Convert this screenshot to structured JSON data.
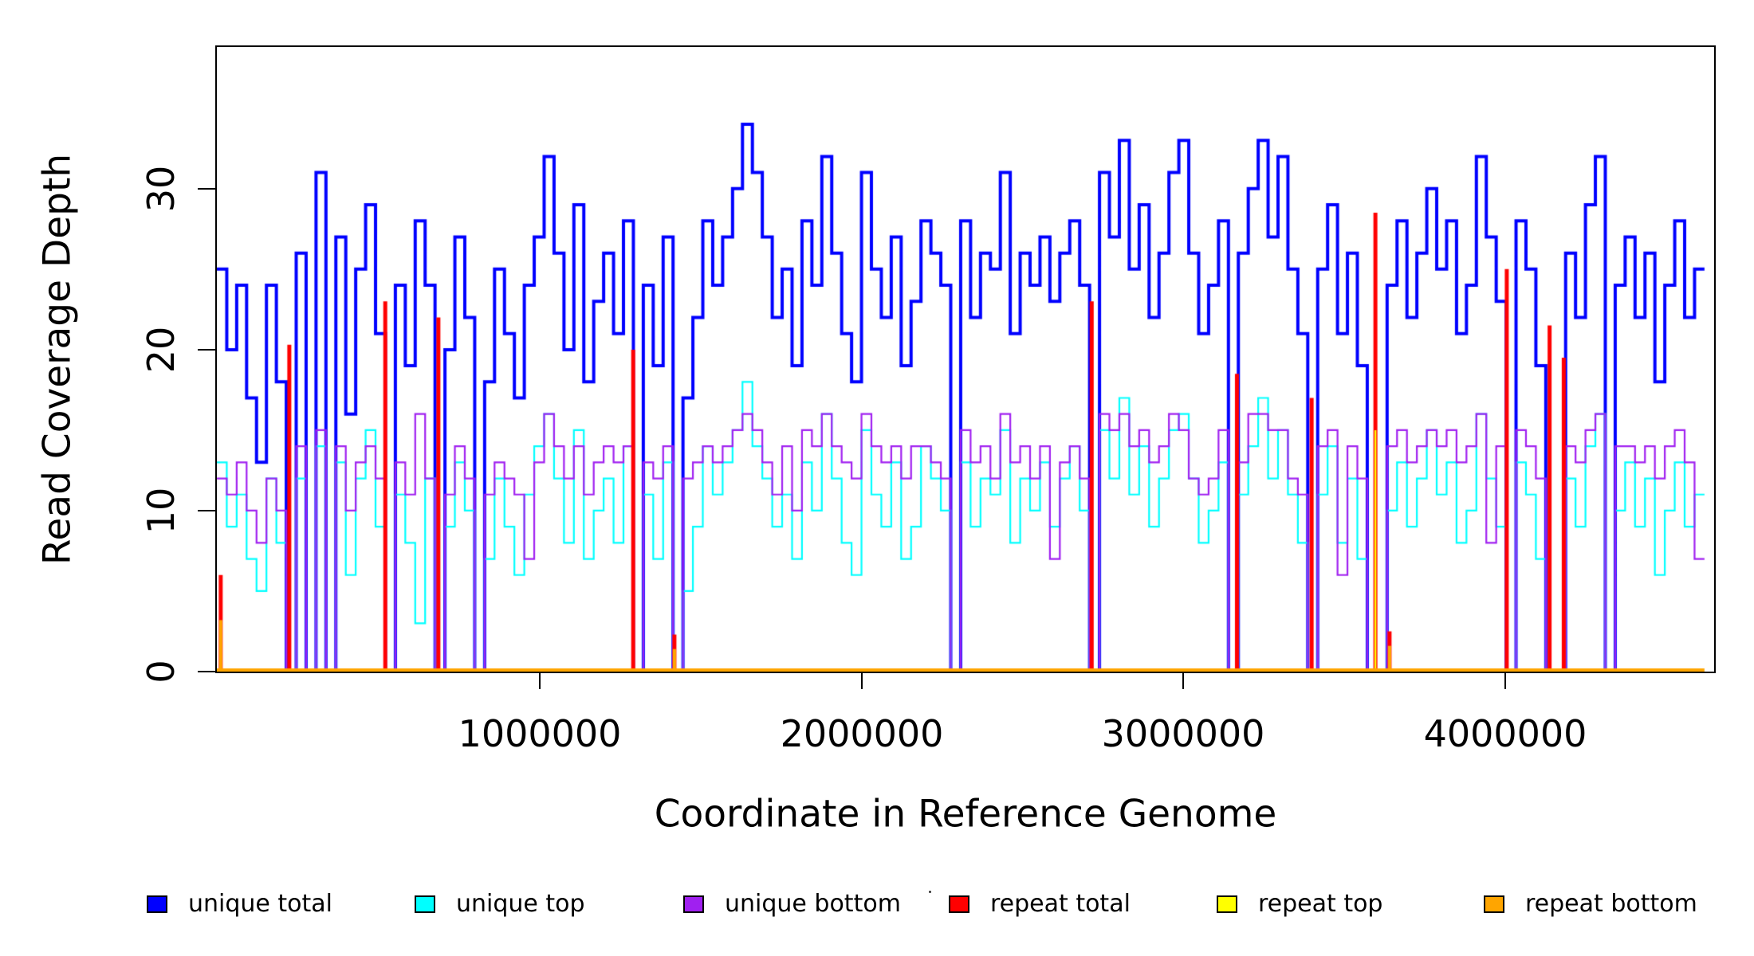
{
  "chart_data": {
    "type": "line",
    "subtype": "step-coverage",
    "title": "",
    "xlabel": "Coordinate in Reference Genome",
    "ylabel": "Read Coverage Depth",
    "xlim": [
      0,
      4650000
    ],
    "ylim": [
      0,
      38.8
    ],
    "grid": false,
    "legend_position": "bottom",
    "window_bp": 30800,
    "x_ticks": [
      1000000,
      2000000,
      3000000,
      4000000
    ],
    "x_tick_labels": [
      "1000000",
      "2000000",
      "3000000",
      "4000000"
    ],
    "y_ticks": [
      0,
      10,
      20,
      30
    ],
    "y_tick_labels": [
      "0",
      "10",
      "20",
      "30"
    ],
    "series": [
      {
        "name": "unique total",
        "color": "#0000FF",
        "lw": 4,
        "values": [
          25,
          20,
          24,
          17,
          13,
          24,
          18,
          0,
          26,
          0,
          31,
          0,
          27,
          16,
          25,
          29,
          21,
          0,
          24,
          19,
          28,
          24,
          0,
          20,
          27,
          22,
          0,
          18,
          25,
          21,
          17,
          24,
          27,
          32,
          26,
          20,
          29,
          18,
          23,
          26,
          21,
          28,
          0,
          24,
          19,
          27,
          0,
          17,
          22,
          28,
          24,
          27,
          30,
          34,
          31,
          27,
          22,
          25,
          19,
          28,
          24,
          32,
          26,
          21,
          18,
          31,
          25,
          22,
          27,
          19,
          23,
          28,
          26,
          24,
          0,
          28,
          22,
          26,
          25,
          31,
          21,
          26,
          24,
          27,
          23,
          26,
          28,
          24,
          0,
          31,
          27,
          33,
          25,
          29,
          22,
          26,
          31,
          33,
          26,
          21,
          24,
          28,
          0,
          26,
          30,
          33,
          27,
          32,
          25,
          21,
          0,
          25,
          29,
          21,
          26,
          19,
          0,
          0,
          24,
          28,
          22,
          26,
          30,
          25,
          28,
          21,
          24,
          32,
          27,
          23,
          0,
          28,
          25,
          19,
          0,
          0,
          26,
          22,
          29,
          32,
          0,
          24,
          27,
          22,
          26,
          18,
          24,
          28,
          22,
          25
        ]
      },
      {
        "name": "unique top",
        "color": "#00FFFF",
        "lw": 2.2,
        "values": [
          13,
          9,
          11,
          7,
          5,
          12,
          8,
          0,
          12,
          0,
          14,
          0,
          13,
          6,
          12,
          15,
          9,
          0,
          11,
          8,
          3,
          12,
          0,
          9,
          13,
          10,
          0,
          7,
          12,
          9,
          6,
          11,
          14,
          16,
          12,
          8,
          15,
          7,
          10,
          12,
          8,
          14,
          0,
          11,
          7,
          13,
          0,
          5,
          9,
          14,
          11,
          13,
          15,
          18,
          14,
          12,
          9,
          11,
          7,
          13,
          10,
          16,
          12,
          8,
          6,
          15,
          11,
          9,
          13,
          7,
          9,
          14,
          12,
          10,
          0,
          13,
          9,
          12,
          11,
          15,
          8,
          12,
          10,
          13,
          9,
          12,
          14,
          10,
          0,
          15,
          12,
          17,
          11,
          14,
          9,
          12,
          15,
          16,
          12,
          8,
          10,
          13,
          0,
          11,
          14,
          17,
          12,
          15,
          11,
          8,
          0,
          11,
          14,
          8,
          12,
          7,
          0,
          0,
          10,
          13,
          9,
          12,
          15,
          11,
          13,
          8,
          10,
          16,
          12,
          9,
          0,
          13,
          11,
          7,
          0,
          0,
          12,
          9,
          14,
          16,
          0,
          10,
          13,
          9,
          12,
          6,
          10,
          13,
          9,
          11
        ]
      },
      {
        "name": "unique bottom",
        "color": "#A020F0",
        "lw": 2.2,
        "values": [
          12,
          11,
          13,
          10,
          8,
          12,
          10,
          0,
          14,
          0,
          15,
          0,
          14,
          10,
          13,
          14,
          12,
          0,
          13,
          11,
          16,
          12,
          0,
          11,
          14,
          12,
          0,
          11,
          13,
          12,
          11,
          7,
          13,
          16,
          14,
          12,
          14,
          11,
          13,
          14,
          13,
          14,
          0,
          13,
          12,
          14,
          0,
          12,
          13,
          14,
          13,
          14,
          15,
          16,
          15,
          13,
          11,
          14,
          10,
          15,
          14,
          16,
          14,
          13,
          12,
          16,
          14,
          13,
          14,
          12,
          14,
          14,
          13,
          12,
          0,
          15,
          13,
          14,
          12,
          16,
          13,
          14,
          12,
          14,
          7,
          13,
          14,
          12,
          0,
          16,
          15,
          16,
          14,
          15,
          13,
          14,
          16,
          15,
          12,
          11,
          12,
          15,
          0,
          13,
          16,
          16,
          15,
          15,
          12,
          11,
          0,
          14,
          15,
          6,
          14,
          12,
          0,
          0,
          14,
          15,
          13,
          14,
          15,
          14,
          15,
          13,
          14,
          16,
          8,
          14,
          0,
          15,
          14,
          12,
          0,
          0,
          14,
          13,
          15,
          16,
          0,
          14,
          14,
          13,
          14,
          12,
          14,
          15,
          13,
          7
        ]
      }
    ],
    "spikes": [
      {
        "name": "repeat total",
        "color": "#FF0000",
        "lw": 5,
        "baseline": false,
        "points": [
          [
            12000,
            6
          ],
          [
            225000,
            20.3
          ],
          [
            523000,
            23
          ],
          [
            688000,
            22
          ],
          [
            1293000,
            20
          ],
          [
            1421000,
            2.3
          ],
          [
            2717000,
            23
          ],
          [
            3168000,
            18.5
          ],
          [
            3400000,
            17
          ],
          [
            3598000,
            28.5
          ],
          [
            3642000,
            2.5
          ],
          [
            4006000,
            25
          ],
          [
            4139000,
            21.5
          ],
          [
            4183000,
            19.5
          ]
        ]
      },
      {
        "name": "repeat top",
        "color": "#FFFF00",
        "lw": 2.4,
        "baseline": false,
        "points": [
          [
            3598000,
            15
          ]
        ]
      },
      {
        "name": "repeat bottom",
        "color": "#FFA500",
        "lw": 4,
        "baseline": true,
        "points": [
          [
            12000,
            3.2
          ],
          [
            1421000,
            1.4
          ],
          [
            3642000,
            1.6
          ]
        ]
      }
    ],
    "legend": [
      {
        "label": "unique total",
        "color": "#0000FF"
      },
      {
        "label": "unique top",
        "color": "#00FFFF"
      },
      {
        "label": "unique bottom",
        "color": "#A020F0"
      },
      {
        "label": "repeat total",
        "color": "#FF0000"
      },
      {
        "label": "repeat top",
        "color": "#FFFF00"
      },
      {
        "label": "repeat bottom",
        "color": "#FFA500"
      }
    ]
  }
}
